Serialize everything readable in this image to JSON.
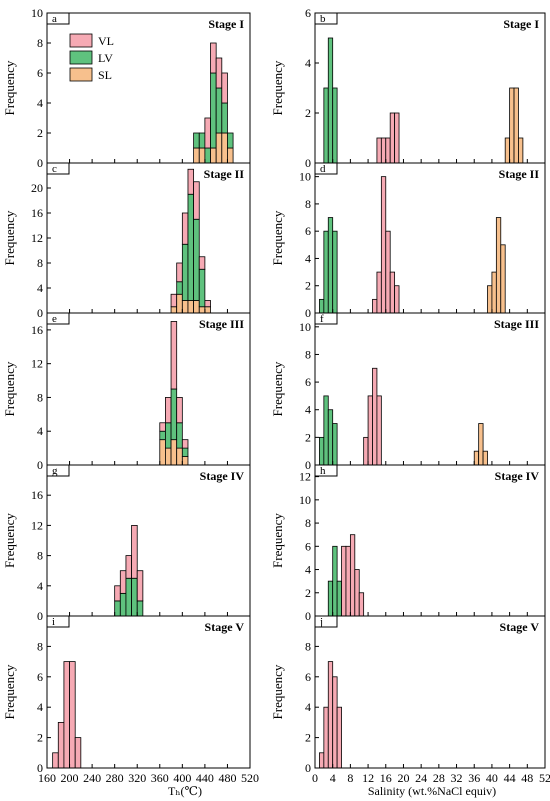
{
  "colors": {
    "VL": "#f6aab4",
    "LV": "#5fc27e",
    "SL": "#f7c08d"
  },
  "legend": [
    {
      "key": "VL",
      "label": "VL"
    },
    {
      "key": "LV",
      "label": "LV"
    },
    {
      "key": "SL",
      "label": "SL"
    }
  ],
  "y_axis_label": "Frequency",
  "x_labels": {
    "left": "Tₕ(℃)",
    "right": "Salinity (wt.%NaCl equiv)"
  },
  "chart_data": [
    {
      "type": "bar",
      "panel": "a",
      "stage": "Stage I",
      "xlim": [
        160,
        520
      ],
      "ylim": [
        0,
        10
      ],
      "yticks": [
        0,
        2,
        4,
        6,
        8,
        10
      ],
      "bin_width": 10,
      "bars": [
        {
          "x": 420,
          "VL": 0,
          "LV": 1,
          "SL": 1
        },
        {
          "x": 430,
          "VL": 0,
          "LV": 1,
          "SL": 1
        },
        {
          "x": 440,
          "VL": 2,
          "LV": 1,
          "SL": 0
        },
        {
          "x": 450,
          "VL": 2,
          "LV": 5,
          "SL": 1
        },
        {
          "x": 460,
          "VL": 2,
          "LV": 3,
          "SL": 2
        },
        {
          "x": 470,
          "VL": 2,
          "LV": 2,
          "SL": 2
        },
        {
          "x": 480,
          "VL": 0,
          "LV": 1,
          "SL": 1
        }
      ]
    },
    {
      "type": "bar",
      "panel": "b",
      "stage": "Stage I",
      "xlim": [
        0,
        52
      ],
      "ylim": [
        0,
        6
      ],
      "yticks": [
        0,
        2,
        4,
        6
      ],
      "bin_width": 1,
      "bars": [
        {
          "x": 2,
          "VL": 0,
          "LV": 3,
          "SL": 0
        },
        {
          "x": 3,
          "VL": 0,
          "LV": 5,
          "SL": 0
        },
        {
          "x": 4,
          "VL": 0,
          "LV": 3,
          "SL": 0
        },
        {
          "x": 14,
          "VL": 1,
          "LV": 0,
          "SL": 0
        },
        {
          "x": 15,
          "VL": 1,
          "LV": 0,
          "SL": 0
        },
        {
          "x": 16,
          "VL": 1,
          "LV": 0,
          "SL": 0
        },
        {
          "x": 17,
          "VL": 2,
          "LV": 0,
          "SL": 0
        },
        {
          "x": 18,
          "VL": 2,
          "LV": 0,
          "SL": 0
        },
        {
          "x": 43,
          "VL": 0,
          "LV": 0,
          "SL": 1
        },
        {
          "x": 44,
          "VL": 0,
          "LV": 0,
          "SL": 3
        },
        {
          "x": 45,
          "VL": 0,
          "LV": 0,
          "SL": 3
        },
        {
          "x": 46,
          "VL": 0,
          "LV": 0,
          "SL": 1
        }
      ]
    },
    {
      "type": "bar",
      "panel": "c",
      "stage": "Stage II",
      "xlim": [
        160,
        520
      ],
      "ylim": [
        0,
        24
      ],
      "yticks": [
        0,
        4,
        8,
        12,
        16,
        20
      ],
      "bin_width": 10,
      "bars": [
        {
          "x": 380,
          "VL": 2,
          "LV": 0,
          "SL": 1
        },
        {
          "x": 390,
          "VL": 3,
          "LV": 2,
          "SL": 3
        },
        {
          "x": 400,
          "VL": 5,
          "LV": 9,
          "SL": 2
        },
        {
          "x": 410,
          "VL": 4,
          "LV": 17,
          "SL": 2
        },
        {
          "x": 420,
          "VL": 6,
          "LV": 13,
          "SL": 2
        },
        {
          "x": 430,
          "VL": 2,
          "LV": 6,
          "SL": 1
        },
        {
          "x": 440,
          "VL": 1,
          "LV": 0,
          "SL": 1
        }
      ]
    },
    {
      "type": "bar",
      "panel": "d",
      "stage": "Stage II",
      "xlim": [
        0,
        52
      ],
      "ylim": [
        0,
        11
      ],
      "yticks": [
        0,
        2,
        4,
        6,
        8,
        10
      ],
      "bin_width": 1,
      "bars": [
        {
          "x": 1,
          "VL": 0,
          "LV": 1,
          "SL": 0
        },
        {
          "x": 2,
          "VL": 0,
          "LV": 6,
          "SL": 0
        },
        {
          "x": 3,
          "VL": 0,
          "LV": 7,
          "SL": 0
        },
        {
          "x": 4,
          "VL": 0,
          "LV": 6,
          "SL": 0
        },
        {
          "x": 13,
          "VL": 1,
          "LV": 0,
          "SL": 0
        },
        {
          "x": 14,
          "VL": 3,
          "LV": 0,
          "SL": 0
        },
        {
          "x": 15,
          "VL": 10,
          "LV": 0,
          "SL": 0
        },
        {
          "x": 16,
          "VL": 6,
          "LV": 0,
          "SL": 0
        },
        {
          "x": 17,
          "VL": 3,
          "LV": 0,
          "SL": 0
        },
        {
          "x": 18,
          "VL": 2,
          "LV": 0,
          "SL": 0
        },
        {
          "x": 39,
          "VL": 0,
          "LV": 0,
          "SL": 2
        },
        {
          "x": 40,
          "VL": 0,
          "LV": 0,
          "SL": 3
        },
        {
          "x": 41,
          "VL": 0,
          "LV": 0,
          "SL": 7
        },
        {
          "x": 42,
          "VL": 0,
          "LV": 0,
          "SL": 5
        }
      ]
    },
    {
      "type": "bar",
      "panel": "e",
      "stage": "Stage III",
      "xlim": [
        160,
        520
      ],
      "ylim": [
        0,
        18
      ],
      "yticks": [
        0,
        4,
        8,
        12,
        16
      ],
      "bin_width": 10,
      "bars": [
        {
          "x": 360,
          "VL": 1,
          "LV": 1,
          "SL": 3
        },
        {
          "x": 370,
          "VL": 3,
          "LV": 3,
          "SL": 2
        },
        {
          "x": 380,
          "VL": 8,
          "LV": 6,
          "SL": 3
        },
        {
          "x": 390,
          "VL": 3,
          "LV": 3,
          "SL": 2
        },
        {
          "x": 400,
          "VL": 1,
          "LV": 1,
          "SL": 1
        }
      ]
    },
    {
      "type": "bar",
      "panel": "f",
      "stage": "Stage III",
      "xlim": [
        0,
        52
      ],
      "ylim": [
        0,
        11
      ],
      "yticks": [
        0,
        2,
        4,
        6,
        8,
        10
      ],
      "bin_width": 1,
      "bars": [
        {
          "x": 1,
          "VL": 0,
          "LV": 2,
          "SL": 0
        },
        {
          "x": 2,
          "VL": 0,
          "LV": 5,
          "SL": 0
        },
        {
          "x": 3,
          "VL": 0,
          "LV": 4,
          "SL": 0
        },
        {
          "x": 4,
          "VL": 0,
          "LV": 3,
          "SL": 0
        },
        {
          "x": 11,
          "VL": 2,
          "LV": 0,
          "SL": 0
        },
        {
          "x": 12,
          "VL": 5,
          "LV": 0,
          "SL": 0
        },
        {
          "x": 13,
          "VL": 7,
          "LV": 0,
          "SL": 0
        },
        {
          "x": 14,
          "VL": 5,
          "LV": 0,
          "SL": 0
        },
        {
          "x": 36,
          "VL": 0,
          "LV": 0,
          "SL": 1
        },
        {
          "x": 37,
          "VL": 0,
          "LV": 0,
          "SL": 3
        },
        {
          "x": 38,
          "VL": 0,
          "LV": 0,
          "SL": 1
        }
      ]
    },
    {
      "type": "bar",
      "panel": "g",
      "stage": "Stage IV",
      "xlim": [
        160,
        520
      ],
      "ylim": [
        0,
        20
      ],
      "yticks": [
        0,
        4,
        8,
        12,
        16
      ],
      "bin_width": 10,
      "bars": [
        {
          "x": 280,
          "VL": 2,
          "LV": 2,
          "SL": 0
        },
        {
          "x": 290,
          "VL": 3,
          "LV": 3,
          "SL": 0
        },
        {
          "x": 300,
          "VL": 3,
          "LV": 5,
          "SL": 0
        },
        {
          "x": 310,
          "VL": 7,
          "LV": 5,
          "SL": 0
        },
        {
          "x": 320,
          "VL": 4,
          "LV": 2,
          "SL": 0
        }
      ]
    },
    {
      "type": "bar",
      "panel": "h",
      "stage": "Stage IV",
      "xlim": [
        0,
        52
      ],
      "ylim": [
        0,
        13
      ],
      "yticks": [
        0,
        2,
        4,
        6,
        8,
        10,
        12
      ],
      "bin_width": 1,
      "bars": [
        {
          "x": 3,
          "VL": 0,
          "LV": 3,
          "SL": 0
        },
        {
          "x": 4,
          "VL": 0,
          "LV": 6,
          "SL": 0
        },
        {
          "x": 5,
          "VL": 0,
          "LV": 3,
          "SL": 0
        },
        {
          "x": 6,
          "VL": 6,
          "LV": 0,
          "SL": 0
        },
        {
          "x": 7,
          "VL": 6,
          "LV": 0,
          "SL": 0
        },
        {
          "x": 8,
          "VL": 7,
          "LV": 0,
          "SL": 0
        },
        {
          "x": 9,
          "VL": 4,
          "LV": 0,
          "SL": 0
        },
        {
          "x": 10,
          "VL": 2,
          "LV": 0,
          "SL": 0
        }
      ]
    },
    {
      "type": "bar",
      "panel": "i",
      "stage": "Stage V",
      "xlim": [
        160,
        520
      ],
      "ylim": [
        0,
        10
      ],
      "yticks": [
        0,
        2,
        4,
        6,
        8
      ],
      "bin_width": 10,
      "bars": [
        {
          "x": 170,
          "VL": 1,
          "LV": 0,
          "SL": 0
        },
        {
          "x": 180,
          "VL": 3,
          "LV": 0,
          "SL": 0
        },
        {
          "x": 190,
          "VL": 7,
          "LV": 0,
          "SL": 0
        },
        {
          "x": 200,
          "VL": 7,
          "LV": 0,
          "SL": 0
        },
        {
          "x": 210,
          "VL": 2,
          "LV": 0,
          "SL": 0
        }
      ]
    },
    {
      "type": "bar",
      "panel": "j",
      "stage": "Stage V",
      "xlim": [
        0,
        52
      ],
      "ylim": [
        0,
        10
      ],
      "yticks": [
        0,
        2,
        4,
        6,
        8
      ],
      "bin_width": 1,
      "bars": [
        {
          "x": 1,
          "VL": 1,
          "LV": 0,
          "SL": 0
        },
        {
          "x": 2,
          "VL": 4,
          "LV": 0,
          "SL": 0
        },
        {
          "x": 3,
          "VL": 7,
          "LV": 0,
          "SL": 0
        },
        {
          "x": 4,
          "VL": 6,
          "LV": 0,
          "SL": 0
        },
        {
          "x": 5,
          "VL": 4,
          "LV": 0,
          "SL": 0
        }
      ]
    }
  ],
  "x_ticks": {
    "left": [
      160,
      200,
      240,
      280,
      320,
      360,
      400,
      440,
      480,
      520
    ],
    "right": [
      0,
      4,
      8,
      12,
      16,
      20,
      24,
      28,
      32,
      36,
      40,
      44,
      48,
      52
    ]
  }
}
